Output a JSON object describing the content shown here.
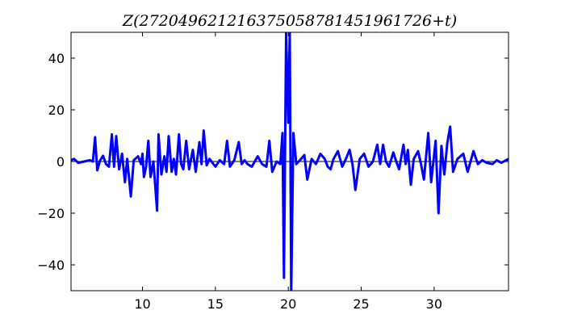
{
  "chart_data": {
    "type": "line",
    "title": "Z(272049621216375058781451961726+t)",
    "xlabel": "",
    "ylabel": "",
    "xlim": [
      5.1,
      35.1
    ],
    "ylim": [
      -50,
      50
    ],
    "xticks": [
      10,
      15,
      20,
      25,
      30
    ],
    "yticks": [
      -40,
      -20,
      0,
      20,
      40
    ],
    "grid": false,
    "line_color": "#0000ff",
    "series": [
      {
        "points": [
          [
            5.1,
            0.5
          ],
          [
            5.3,
            1
          ],
          [
            5.6,
            -0.5
          ],
          [
            6.0,
            0
          ],
          [
            6.4,
            0.5
          ],
          [
            6.6,
            0
          ],
          [
            6.75,
            9.4
          ],
          [
            6.9,
            -3.4
          ],
          [
            7.1,
            0.5
          ],
          [
            7.3,
            2.2
          ],
          [
            7.5,
            -1
          ],
          [
            7.7,
            -2
          ],
          [
            7.9,
            10.5
          ],
          [
            8.05,
            -2
          ],
          [
            8.2,
            9.8
          ],
          [
            8.4,
            -3
          ],
          [
            8.6,
            3
          ],
          [
            8.8,
            -8
          ],
          [
            8.95,
            1
          ],
          [
            9.2,
            -13.5
          ],
          [
            9.4,
            0.5
          ],
          [
            9.7,
            2
          ],
          [
            9.9,
            -1
          ],
          [
            10.0,
            3
          ],
          [
            10.1,
            -6
          ],
          [
            10.25,
            -2
          ],
          [
            10.4,
            8
          ],
          [
            10.55,
            -6
          ],
          [
            10.75,
            0
          ],
          [
            11.0,
            -19
          ],
          [
            11.1,
            10.5
          ],
          [
            11.3,
            -5
          ],
          [
            11.5,
            2
          ],
          [
            11.65,
            -4
          ],
          [
            11.8,
            9.8
          ],
          [
            12.0,
            -4
          ],
          [
            12.15,
            1
          ],
          [
            12.3,
            -5
          ],
          [
            12.5,
            10.5
          ],
          [
            12.65,
            -1
          ],
          [
            12.8,
            -3
          ],
          [
            13.0,
            8
          ],
          [
            13.2,
            -3
          ],
          [
            13.45,
            4.5
          ],
          [
            13.65,
            -4
          ],
          [
            13.9,
            7.5
          ],
          [
            14.05,
            -1
          ],
          [
            14.2,
            12
          ],
          [
            14.4,
            -1.5
          ],
          [
            14.6,
            1
          ],
          [
            15.0,
            -2
          ],
          [
            15.3,
            0.5
          ],
          [
            15.6,
            -1
          ],
          [
            15.8,
            8
          ],
          [
            16.0,
            -2
          ],
          [
            16.3,
            0.5
          ],
          [
            16.6,
            7.5
          ],
          [
            16.8,
            -1
          ],
          [
            17.0,
            0.5
          ],
          [
            17.2,
            -1
          ],
          [
            17.5,
            -2
          ],
          [
            17.9,
            2
          ],
          [
            18.2,
            -1
          ],
          [
            18.5,
            -2
          ],
          [
            18.7,
            8
          ],
          [
            18.9,
            -4
          ],
          [
            19.2,
            0
          ],
          [
            19.45,
            -1
          ],
          [
            19.6,
            11
          ],
          [
            19.7,
            -45
          ],
          [
            19.85,
            90
          ],
          [
            20.0,
            15
          ],
          [
            20.1,
            60
          ],
          [
            20.2,
            -90
          ],
          [
            20.35,
            11
          ],
          [
            20.55,
            -1
          ],
          [
            20.8,
            0.5
          ],
          [
            21.1,
            2.5
          ],
          [
            21.3,
            -7
          ],
          [
            21.6,
            1
          ],
          [
            21.9,
            -1
          ],
          [
            22.2,
            3
          ],
          [
            22.5,
            1
          ],
          [
            22.7,
            -2
          ],
          [
            22.9,
            -3
          ],
          [
            23.1,
            1
          ],
          [
            23.4,
            4
          ],
          [
            23.7,
            -2
          ],
          [
            23.95,
            1
          ],
          [
            24.2,
            4.5
          ],
          [
            24.4,
            -1
          ],
          [
            24.6,
            -11
          ],
          [
            24.9,
            1
          ],
          [
            25.2,
            3
          ],
          [
            25.5,
            -2
          ],
          [
            25.8,
            0
          ],
          [
            26.1,
            6.5
          ],
          [
            26.3,
            -1
          ],
          [
            26.5,
            6.5
          ],
          [
            26.7,
            0
          ],
          [
            26.9,
            -2
          ],
          [
            27.2,
            3.5
          ],
          [
            27.4,
            0
          ],
          [
            27.6,
            -3
          ],
          [
            27.9,
            6.5
          ],
          [
            28.05,
            -1
          ],
          [
            28.2,
            4.5
          ],
          [
            28.4,
            -9
          ],
          [
            28.6,
            1
          ],
          [
            28.9,
            4
          ],
          [
            29.1,
            -1
          ],
          [
            29.3,
            -7
          ],
          [
            29.6,
            11
          ],
          [
            29.8,
            -8
          ],
          [
            30.1,
            8
          ],
          [
            30.3,
            -20
          ],
          [
            30.5,
            6
          ],
          [
            30.7,
            -5
          ],
          [
            30.9,
            7
          ],
          [
            31.1,
            13.5
          ],
          [
            31.3,
            -4
          ],
          [
            31.6,
            1
          ],
          [
            32.0,
            3
          ],
          [
            32.3,
            -4
          ],
          [
            32.7,
            4
          ],
          [
            33.0,
            -1
          ],
          [
            33.3,
            0.5
          ],
          [
            33.6,
            -0.5
          ],
          [
            34.0,
            -1
          ],
          [
            34.3,
            0.5
          ],
          [
            34.6,
            -0.5
          ],
          [
            35.1,
            1
          ]
        ]
      }
    ]
  }
}
